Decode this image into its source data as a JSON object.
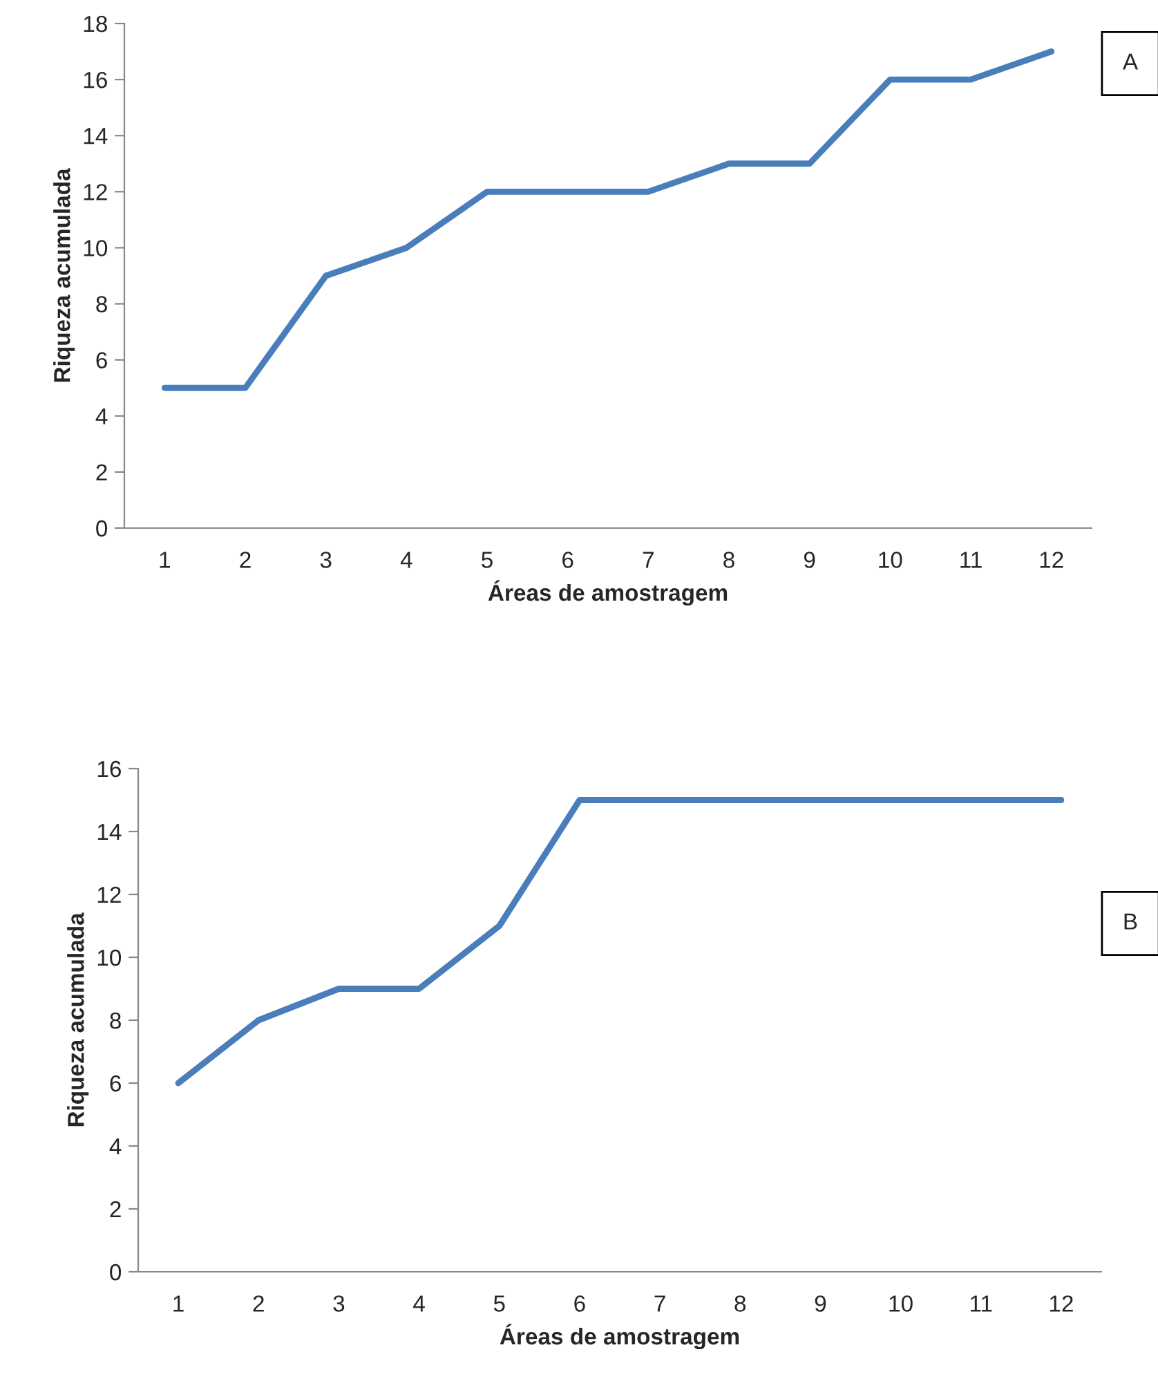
{
  "chart_data": [
    {
      "type": "line",
      "xlabel": "Áreas de amostragem",
      "ylabel": "Riqueza acumulada",
      "categories": [
        "1",
        "2",
        "3",
        "4",
        "5",
        "6",
        "7",
        "8",
        "9",
        "10",
        "11",
        "12"
      ],
      "series": [
        {
          "color": "#4a7ebb",
          "values": [
            5,
            5,
            9,
            10,
            12,
            12,
            12,
            13,
            13,
            16,
            16,
            17
          ]
        }
      ],
      "ylim": [
        0,
        18
      ],
      "yticks": [
        0,
        2,
        4,
        6,
        8,
        10,
        12,
        14,
        16,
        18
      ],
      "grid": false,
      "marker": "none",
      "line_style": "solid",
      "annotations": [
        "A"
      ]
    },
    {
      "type": "line",
      "xlabel": "Áreas de amostragem",
      "ylabel": "Riqueza acumulada",
      "categories": [
        "1",
        "2",
        "3",
        "4",
        "5",
        "6",
        "7",
        "8",
        "9",
        "10",
        "11",
        "12"
      ],
      "series": [
        {
          "color": "#4a7ebb",
          "values": [
            6,
            8,
            9,
            9,
            11,
            15,
            15,
            15,
            15,
            15,
            15,
            15
          ]
        }
      ],
      "ylim": [
        0,
        16
      ],
      "yticks": [
        0,
        2,
        4,
        6,
        8,
        10,
        12,
        14,
        16
      ],
      "grid": false,
      "marker": "none",
      "line_style": "solid",
      "annotations": [
        "B"
      ]
    }
  ]
}
